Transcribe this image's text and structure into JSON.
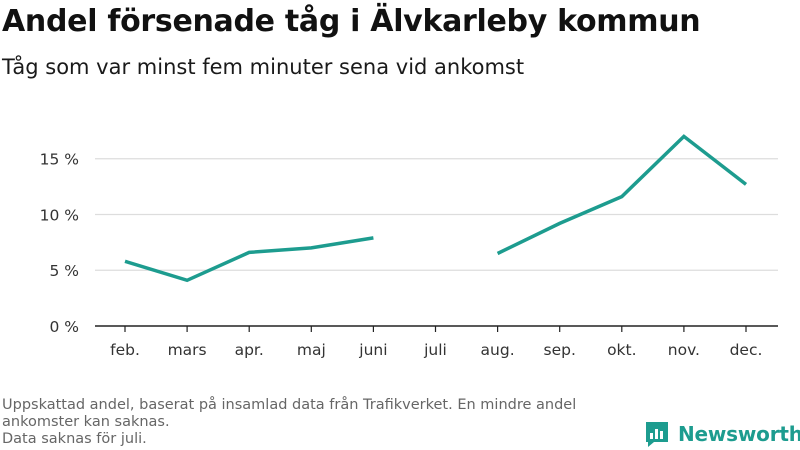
{
  "header": {
    "title": "Andel försenade tåg i Älvkarleby kommun",
    "subtitle": "Tåg som var minst fem minuter sena vid ankomst"
  },
  "footer": {
    "note_line1": "Uppskattad andel, baserat på insamlad data från Trafikverket. En mindre andel ankomster kan saknas.",
    "note_line2": "Data saknas för juli."
  },
  "brand": {
    "name": "Newsworthy",
    "logo_icon": "bar-chart-bubble-icon",
    "color": "#1d9c8f"
  },
  "chart_data": {
    "type": "line",
    "categories": [
      "feb.",
      "mars",
      "apr.",
      "maj",
      "juni",
      "juli",
      "aug.",
      "sep.",
      "okt.",
      "nov.",
      "dec."
    ],
    "series": [
      {
        "values": [
          5.8,
          4.1,
          6.6,
          7.0,
          7.9,
          null,
          6.5,
          9.2,
          11.6,
          17.0,
          12.7
        ],
        "color": "#1d9c8f"
      }
    ],
    "yticks": [
      0,
      5,
      10,
      15
    ],
    "ytick_labels": [
      "0 %",
      "5 %",
      "10 %",
      "15 %"
    ],
    "ylim": [
      0,
      19.1
    ],
    "grid": true,
    "gridline_color": "#dddddd",
    "axis_color": "#222222",
    "xlabel": "",
    "ylabel": ""
  }
}
